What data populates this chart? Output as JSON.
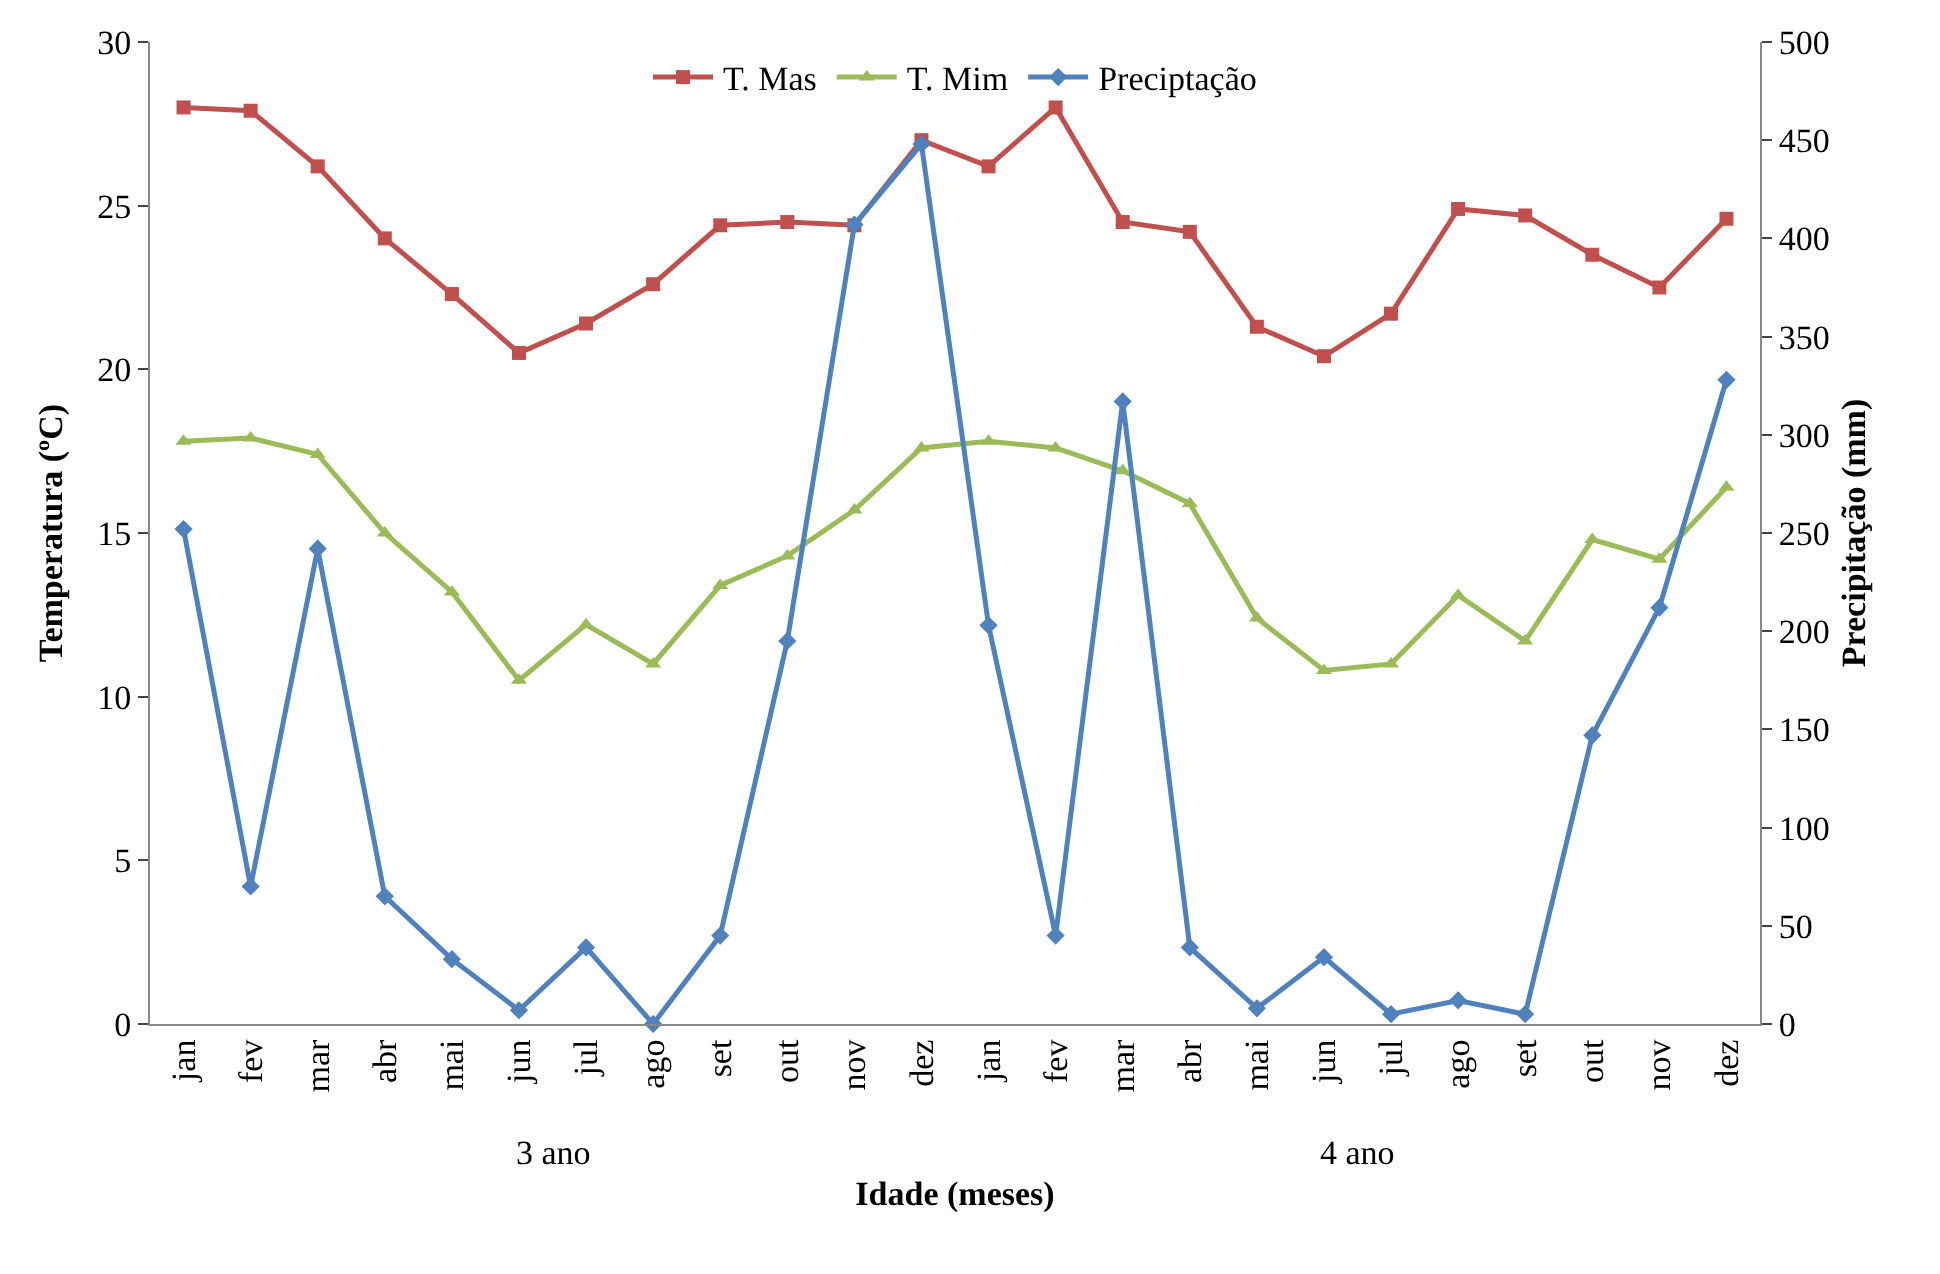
{
  "chart_data": {
    "type": "line",
    "xlabel": "Idade (meses)",
    "ylabel": "Temperatura (ºC)",
    "y2label": "Precipitação (mm)",
    "categories": [
      "jan",
      "fev",
      "mar",
      "abr",
      "mai",
      "jun",
      "jul",
      "ago",
      "set",
      "out",
      "nov",
      "dez",
      "jan",
      "fev",
      "mar",
      "abr",
      "mai",
      "jun",
      "jul",
      "ago",
      "set",
      "out",
      "nov",
      "dez"
    ],
    "annotations": [
      "3 ano",
      "4 ano"
    ],
    "series": [
      {
        "name": "T. Mas",
        "color": "#c0504d",
        "marker": "square",
        "values": [
          28.0,
          27.9,
          26.2,
          24.0,
          22.3,
          20.5,
          21.4,
          22.6,
          24.4,
          24.5,
          24.4,
          27.0,
          26.2,
          28.0,
          24.5,
          24.2,
          21.3,
          20.4,
          21.7,
          24.9,
          24.7,
          23.5,
          22.5,
          24.6
        ]
      },
      {
        "name": "T. Mim",
        "color": "#9bbb59",
        "marker": "triangle",
        "values": [
          17.8,
          17.9,
          17.4,
          15.0,
          13.2,
          10.5,
          12.2,
          11.0,
          13.4,
          14.3,
          15.7,
          17.6,
          17.8,
          17.6,
          16.9,
          15.9,
          12.4,
          10.8,
          11.0,
          13.1,
          11.7,
          14.8,
          14.2,
          16.4
        ]
      },
      {
        "name": "Preciptação",
        "color": "#4f81bd",
        "marker": "diamond",
        "axis": "y2",
        "values": [
          252,
          70,
          242,
          65,
          33,
          7,
          39,
          0,
          45,
          195,
          407,
          448,
          203,
          45,
          317,
          39,
          8,
          34,
          5,
          12,
          5,
          147,
          212,
          328
        ]
      }
    ],
    "ylim": [
      0,
      30
    ],
    "yticks": [
      0,
      5,
      10,
      15,
      20,
      25,
      30
    ],
    "y2lim": [
      0,
      500
    ],
    "y2ticks": [
      0,
      50,
      100,
      150,
      200,
      250,
      300,
      350,
      400,
      450,
      500
    ],
    "grid": false,
    "legend": "top",
    "line_style": "solid"
  }
}
